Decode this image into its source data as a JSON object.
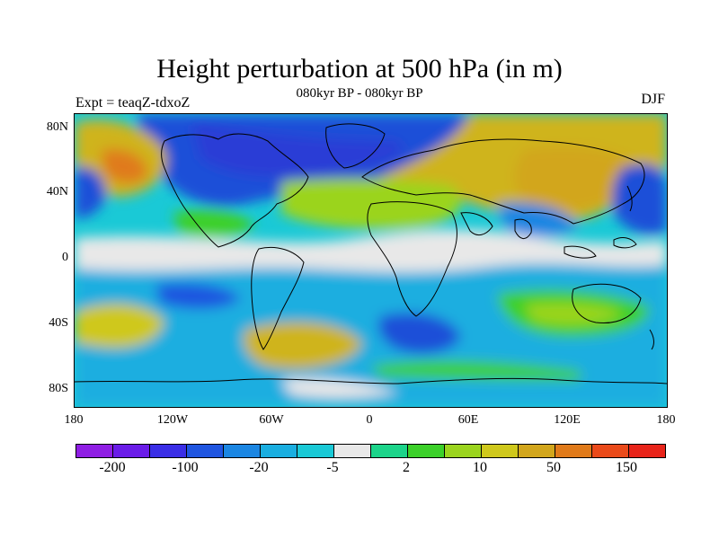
{
  "title": "Height perturbation at 500 hPa (in m)",
  "subtitle": "080kyr BP - 080kyr BP",
  "experiment_label": "Expt = teaqZ-tdxoZ",
  "season_label": "DJF",
  "axes": {
    "lat_labels": [
      "80N",
      "40N",
      "0",
      "40S",
      "80S"
    ],
    "lon_labels": [
      "180",
      "120W",
      "60W",
      "0",
      "60E",
      "120E",
      "180"
    ]
  },
  "colorbar": {
    "colors": [
      "#8f1ee4",
      "#6a1ce8",
      "#3a2ee6",
      "#1f55e0",
      "#1b86e2",
      "#1aaee0",
      "#1ac9d6",
      "#e8e8e8",
      "#1cd48a",
      "#3cd02a",
      "#9bd41e",
      "#cfc81c",
      "#d2a61c",
      "#e07a1a",
      "#ea4a1a",
      "#e8241a"
    ],
    "labels": [
      "-200",
      "-100",
      "-20",
      "-5",
      "2",
      "10",
      "50",
      "150"
    ]
  },
  "regions_legend": {
    "strong_negative": "#1f4fd8",
    "weak_negative": "#1aaee0",
    "neutral": "#e8e8e8",
    "weak_positive": "#3cd02a",
    "strong_positive": "#cfb41c"
  }
}
